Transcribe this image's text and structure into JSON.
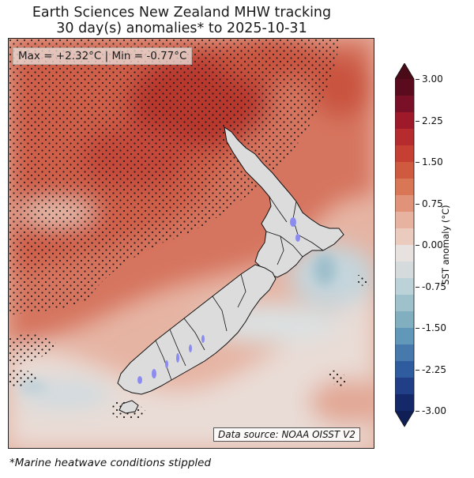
{
  "header": {
    "title_line1": "Earth Sciences New Zealand MHW tracking",
    "title_line2": "30 day(s) anomalies* to 2025-10-31"
  },
  "stats": {
    "label": "Max = +2.32°C | Min = -0.77°C",
    "max": 2.32,
    "min": -0.77,
    "unit": "°C"
  },
  "source_label": "Data source: NOAA OISST V2",
  "footnote": "*Marine heatwave conditions stippled",
  "colorbar": {
    "label": "SST anomaly (°C)",
    "ticks": [
      "3.00",
      "2.25",
      "1.50",
      "0.75",
      "0.00",
      "-0.75",
      "-1.50",
      "-2.25",
      "-3.00"
    ],
    "range": [
      -3.0,
      3.0
    ],
    "colors": [
      "#5a0b1e",
      "#7a1028",
      "#9e1a2a",
      "#b62b2e",
      "#c53f33",
      "#d05a40",
      "#d97656",
      "#e1937a",
      "#e8b2a0",
      "#eccbbf",
      "#e7e1df",
      "#d5dadd",
      "#bcd2d9",
      "#9fc1cc",
      "#82afc0",
      "#6197b8",
      "#4779ad",
      "#2f5b9f",
      "#203f86",
      "#14286a"
    ]
  },
  "map_colors": {
    "warm_strong": "#c0443a",
    "warm": "#d26f5b",
    "warm_light": "#e6a896",
    "neutral": "#ead6cf",
    "cool": "#c9dbe0",
    "land": "#dcdcdc",
    "lakes": "#8c8cf0"
  }
}
